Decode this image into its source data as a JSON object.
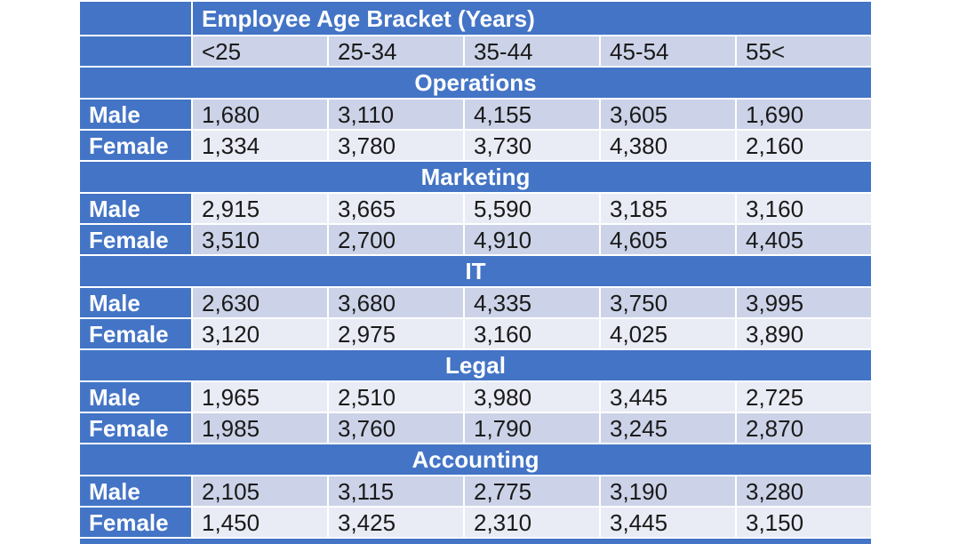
{
  "chart_data": {
    "type": "table",
    "title": "Employee Age Bracket (Years)",
    "columns": [
      "<25",
      "25-34",
      "35-44",
      "45-54",
      "55<"
    ],
    "departments": [
      {
        "name": "Operations",
        "male": [
          "1,680",
          "3,110",
          "4,155",
          "3,605",
          "1,690"
        ],
        "female": [
          "1,334",
          "3,780",
          "3,730",
          "4,380",
          "2,160"
        ]
      },
      {
        "name": "Marketing",
        "male": [
          "2,915",
          "3,665",
          "5,590",
          "3,185",
          "3,160"
        ],
        "female": [
          "3,510",
          "2,700",
          "4,910",
          "4,605",
          "4,405"
        ]
      },
      {
        "name": "IT",
        "male": [
          "2,630",
          "3,680",
          "4,335",
          "3,750",
          "3,995"
        ],
        "female": [
          "3,120",
          "2,975",
          "3,160",
          "4,025",
          "3,890"
        ]
      },
      {
        "name": "Legal",
        "male": [
          "1,965",
          "2,510",
          "3,980",
          "3,445",
          "2,725"
        ],
        "female": [
          "1,985",
          "3,760",
          "1,790",
          "3,245",
          "2,870"
        ]
      },
      {
        "name": "Accounting",
        "male": [
          "2,105",
          "3,115",
          "2,775",
          "3,190",
          "3,280"
        ],
        "female": [
          "1,450",
          "3,425",
          "2,310",
          "3,445",
          "3,150"
        ]
      }
    ]
  },
  "gender_labels": {
    "male": "Male",
    "female": "Female"
  },
  "colors": {
    "header_blue": "#4374C6",
    "band_dark": "#CCD3E8",
    "band_light": "#E9EBF5",
    "text_dark": "#1A1A1A",
    "text_light": "#FFFFFF"
  }
}
